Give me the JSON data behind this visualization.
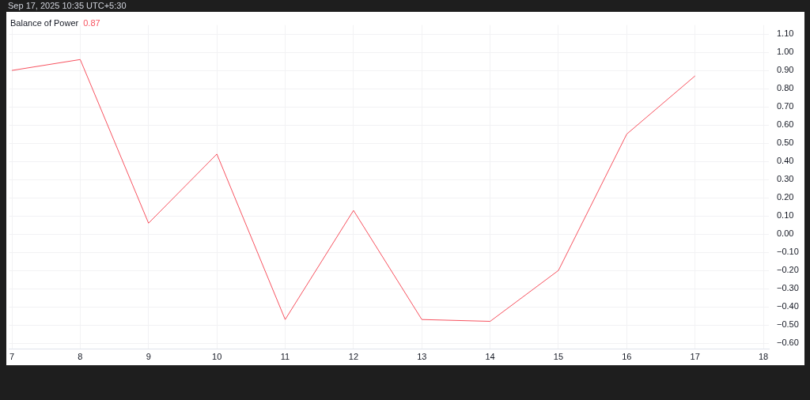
{
  "chart_data": {
    "type": "line",
    "title": "Balance of Power",
    "subtitle": "Sep 17, 2025 10:35 UTC+5:30",
    "annotations": [
      "0.87"
    ],
    "x": [
      7,
      8,
      9,
      10,
      11,
      12,
      13,
      14,
      15,
      16,
      17
    ],
    "series": [
      {
        "color": "#f7525f",
        "values": [
          0.9,
          0.96,
          0.06,
          0.44,
          -0.47,
          0.13,
          -0.47,
          -0.48,
          -0.2,
          0.55,
          0.87
        ]
      }
    ],
    "xlim": [
      6.96,
      18.08
    ],
    "xticks": [
      7,
      8,
      9,
      10,
      11,
      12,
      13,
      14,
      15,
      16,
      17,
      18
    ],
    "ylim": [
      -0.63,
      1.15
    ],
    "yticks": [
      {
        "value": 1.1,
        "label": "1.10"
      },
      {
        "value": 1.0,
        "label": "1.00"
      },
      {
        "value": 0.9,
        "label": "0.90"
      },
      {
        "value": 0.8,
        "label": "0.80"
      },
      {
        "value": 0.7,
        "label": "0.70"
      },
      {
        "value": 0.6,
        "label": "0.60"
      },
      {
        "value": 0.5,
        "label": "0.50"
      },
      {
        "value": 0.4,
        "label": "0.40"
      },
      {
        "value": 0.3,
        "label": "0.30"
      },
      {
        "value": 0.2,
        "label": "0.20"
      },
      {
        "value": 0.1,
        "label": "0.10"
      },
      {
        "value": 0,
        "label": "0.00"
      },
      {
        "value": -0.1,
        "label": "−0.10"
      },
      {
        "value": -0.2,
        "label": "−0.20"
      },
      {
        "value": -0.3,
        "label": "−0.30"
      },
      {
        "value": -0.4,
        "label": "−0.40"
      },
      {
        "value": -0.5,
        "label": "−0.50"
      },
      {
        "value": -0.6,
        "label": "−0.60"
      }
    ],
    "grid": true,
    "legend": false,
    "marker": "none",
    "line_style": "solid"
  }
}
